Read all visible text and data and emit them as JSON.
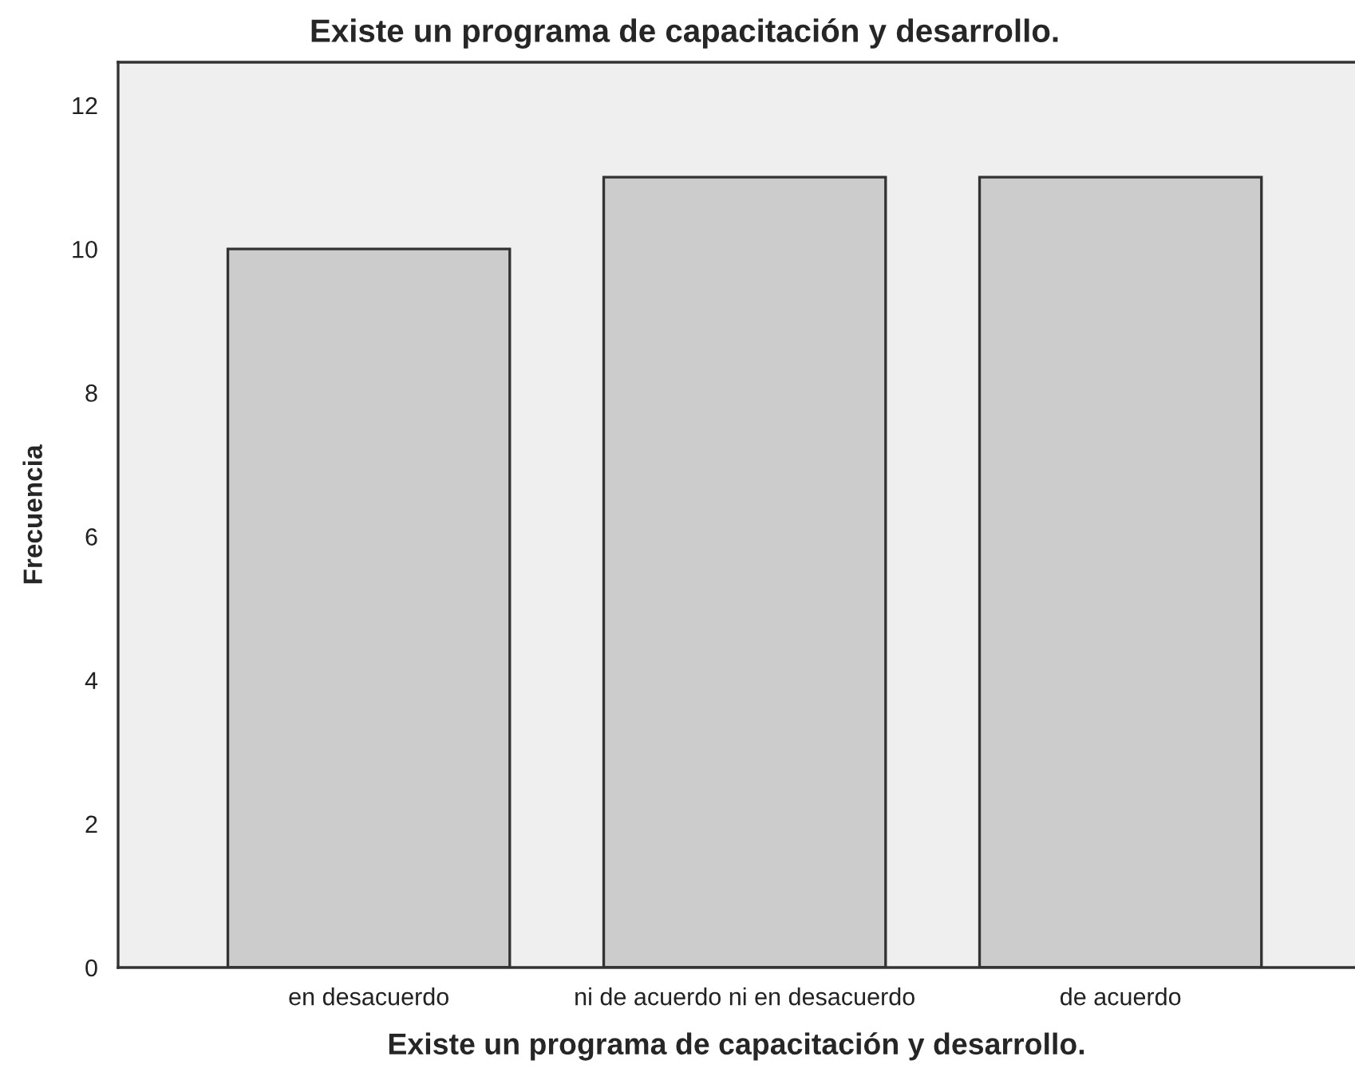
{
  "chart_data": {
    "type": "bar",
    "title": "Existe un programa de capacitación y desarrollo.",
    "xlabel": "Existe un programa de capacitación y desarrollo.",
    "ylabel": "Frecuencia",
    "categories": [
      "en desacuerdo",
      "ni de acuerdo ni en desacuerdo",
      "de acuerdo"
    ],
    "values": [
      10,
      11,
      11
    ],
    "color": "#cccccc",
    "ylim": [
      0,
      12.6
    ],
    "yticks": [
      0,
      2,
      4,
      6,
      8,
      10,
      12
    ],
    "grid": false,
    "legend": false
  }
}
